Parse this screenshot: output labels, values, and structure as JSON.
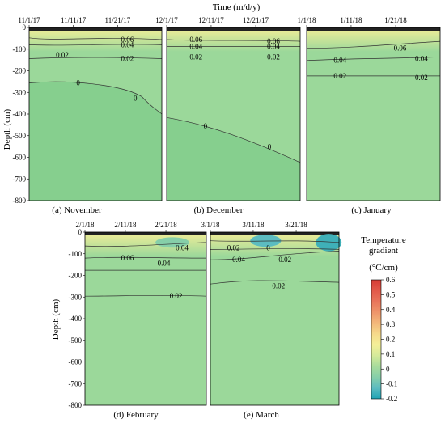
{
  "figure": {
    "x_title": "Time (m/d/y)",
    "y_title": "Depth (cm)",
    "colorbar_title": [
      "Temperature",
      "gradient",
      "(°C/cm)"
    ]
  },
  "colors": {
    "panel_fill": "#9bd89a",
    "deep_fill": "#86cf8e",
    "contour_line": "#333333",
    "colorbar": [
      "#1fa3b5",
      "#5cbcc0",
      "#86cfa9",
      "#a8dc9b",
      "#d5ea9a",
      "#f4ef98",
      "#f6d98a",
      "#f3b87a",
      "#ee956a",
      "#e8755b",
      "#e25a4a",
      "#d63b34"
    ]
  },
  "chart_data": [
    {
      "type": "heatmap",
      "panel": "november",
      "caption": "(a) November",
      "x_ticks": [
        "11/1/17",
        "11/11/17",
        "11/21/17"
      ],
      "ylabel": "Depth (cm)",
      "ylim": [
        -800,
        0
      ],
      "y_ticks": [
        "0",
        "-100",
        "-200",
        "-300",
        "-400",
        "-500",
        "-600",
        "-700",
        "-800"
      ],
      "contour_labels": [
        "0.06",
        "0.04",
        "0.02",
        "0.02",
        "0",
        "0"
      ]
    },
    {
      "type": "heatmap",
      "panel": "december",
      "caption": "(b) December",
      "x_ticks": [
        "12/1/17",
        "12/11/17",
        "12/21/17"
      ],
      "ylim": [
        -800,
        0
      ],
      "contour_labels": [
        "0.06",
        "0.06",
        "0.04",
        "0.04",
        "0.02",
        "0.02",
        "0",
        "0"
      ]
    },
    {
      "type": "heatmap",
      "panel": "january",
      "caption": "(c) January",
      "x_ticks": [
        "1/1/18",
        "1/11/18",
        "1/21/18"
      ],
      "ylim": [
        -800,
        0
      ],
      "contour_labels": [
        "0.06",
        "0.04",
        "0.04",
        "0.02",
        "0.02"
      ]
    },
    {
      "type": "heatmap",
      "panel": "february",
      "caption": "(d) February",
      "x_ticks": [
        "2/1/18",
        "2/11/18",
        "2/21/18"
      ],
      "ylabel": "Depth (cm)",
      "ylim": [
        -800,
        0
      ],
      "y_ticks": [
        "0",
        "-100",
        "-200",
        "-300",
        "-400",
        "-500",
        "-600",
        "-700",
        "-800"
      ],
      "contour_labels": [
        "0.04",
        "0.06",
        "0.04",
        "0.02"
      ]
    },
    {
      "type": "heatmap",
      "panel": "march",
      "caption": "(e) March",
      "x_ticks": [
        "3/1/18",
        "3/11/18",
        "3/21/18"
      ],
      "ylim": [
        -800,
        0
      ],
      "contour_labels": [
        "0.02",
        "0",
        "0.04",
        "0.02",
        "0.02"
      ]
    },
    {
      "type": "colorbar",
      "title": "Temperature gradient (°C/cm)",
      "range": [
        -0.2,
        0.6
      ],
      "tick_labels": [
        "0.6",
        "0.5",
        "0.4",
        "0.3",
        "0.2",
        "0.1",
        "0",
        "-0.1",
        "-0.2"
      ]
    }
  ]
}
